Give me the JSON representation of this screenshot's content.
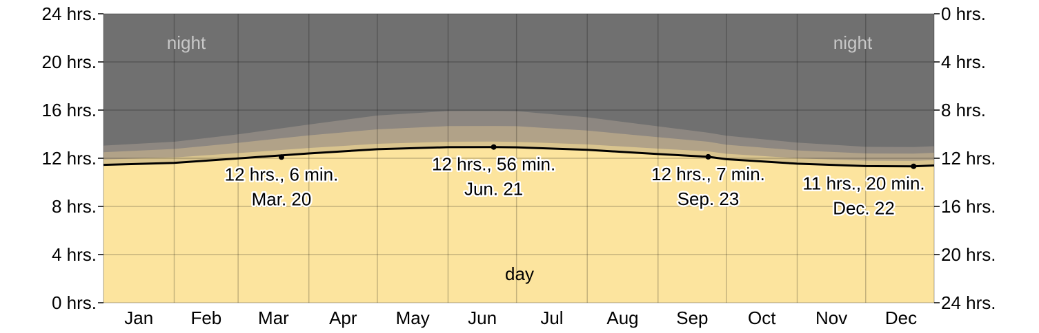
{
  "chart_data": {
    "type": "area",
    "x_label_months": [
      "Jan",
      "Feb",
      "Mar",
      "Apr",
      "May",
      "Jun",
      "Jul",
      "Aug",
      "Sep",
      "Oct",
      "Nov",
      "Dec"
    ],
    "left_axis": {
      "ylim": [
        0,
        24
      ],
      "ticks": [
        0,
        4,
        8,
        12,
        16,
        20,
        24
      ],
      "tick_labels": [
        "0 hrs.",
        "4 hrs.",
        "8 hrs.",
        "12 hrs.",
        "16 hrs.",
        "20 hrs.",
        "24 hrs."
      ]
    },
    "right_axis": {
      "ticks": [
        24,
        20,
        16,
        12,
        8,
        4,
        0
      ],
      "tick_labels": [
        "0 hrs.",
        "4 hrs.",
        "8 hrs.",
        "12 hrs.",
        "16 hrs.",
        "20 hrs.",
        "24 hrs."
      ]
    },
    "grid": true,
    "band_labels": {
      "night": "night",
      "day": "day"
    },
    "colors": {
      "day": "#fce49e",
      "civil": "#d9c48e",
      "nautical": "#b1a288",
      "astronomical": "#8d8781",
      "night": "#707070",
      "line": "#000000",
      "grid": "#000000"
    },
    "series": [
      {
        "name": "day",
        "x_day_of_year": [
          1,
          32,
          60,
          91,
          121,
          152,
          172,
          182,
          213,
          244,
          266,
          274,
          305,
          335,
          356,
          365
        ],
        "hours": [
          11.45,
          11.62,
          11.98,
          12.4,
          12.75,
          12.92,
          12.93,
          12.91,
          12.7,
          12.35,
          12.12,
          11.92,
          11.55,
          11.35,
          11.33,
          11.4
        ]
      }
    ],
    "twilight_offsets_hours": {
      "civil": 0.45,
      "nautical": [
        1.05,
        1.15,
        1.3,
        1.5,
        1.65,
        1.75,
        1.75,
        1.75,
        1.6,
        1.4,
        1.25,
        1.2,
        1.1,
        1.05,
        1.05,
        1.05
      ],
      "astronomical": [
        1.6,
        1.75,
        2.0,
        2.4,
        2.8,
        3.0,
        3.0,
        3.0,
        2.7,
        2.3,
        2.0,
        1.95,
        1.75,
        1.6,
        1.6,
        1.6
      ]
    },
    "annotations": [
      {
        "day_of_year": 79,
        "hours": 12.1,
        "line1": "12 hrs., 6 min.",
        "line2": "Mar. 20"
      },
      {
        "day_of_year": 172,
        "hours": 12.93,
        "line1": "12 hrs., 56 min.",
        "line2": "Jun. 21"
      },
      {
        "day_of_year": 266,
        "hours": 12.12,
        "line1": "12 hrs., 7 min.",
        "line2": "Sep. 23"
      },
      {
        "day_of_year": 356,
        "hours": 11.33,
        "line1": "11 hrs., 20 min.",
        "line2": "Dec. 22"
      }
    ]
  }
}
